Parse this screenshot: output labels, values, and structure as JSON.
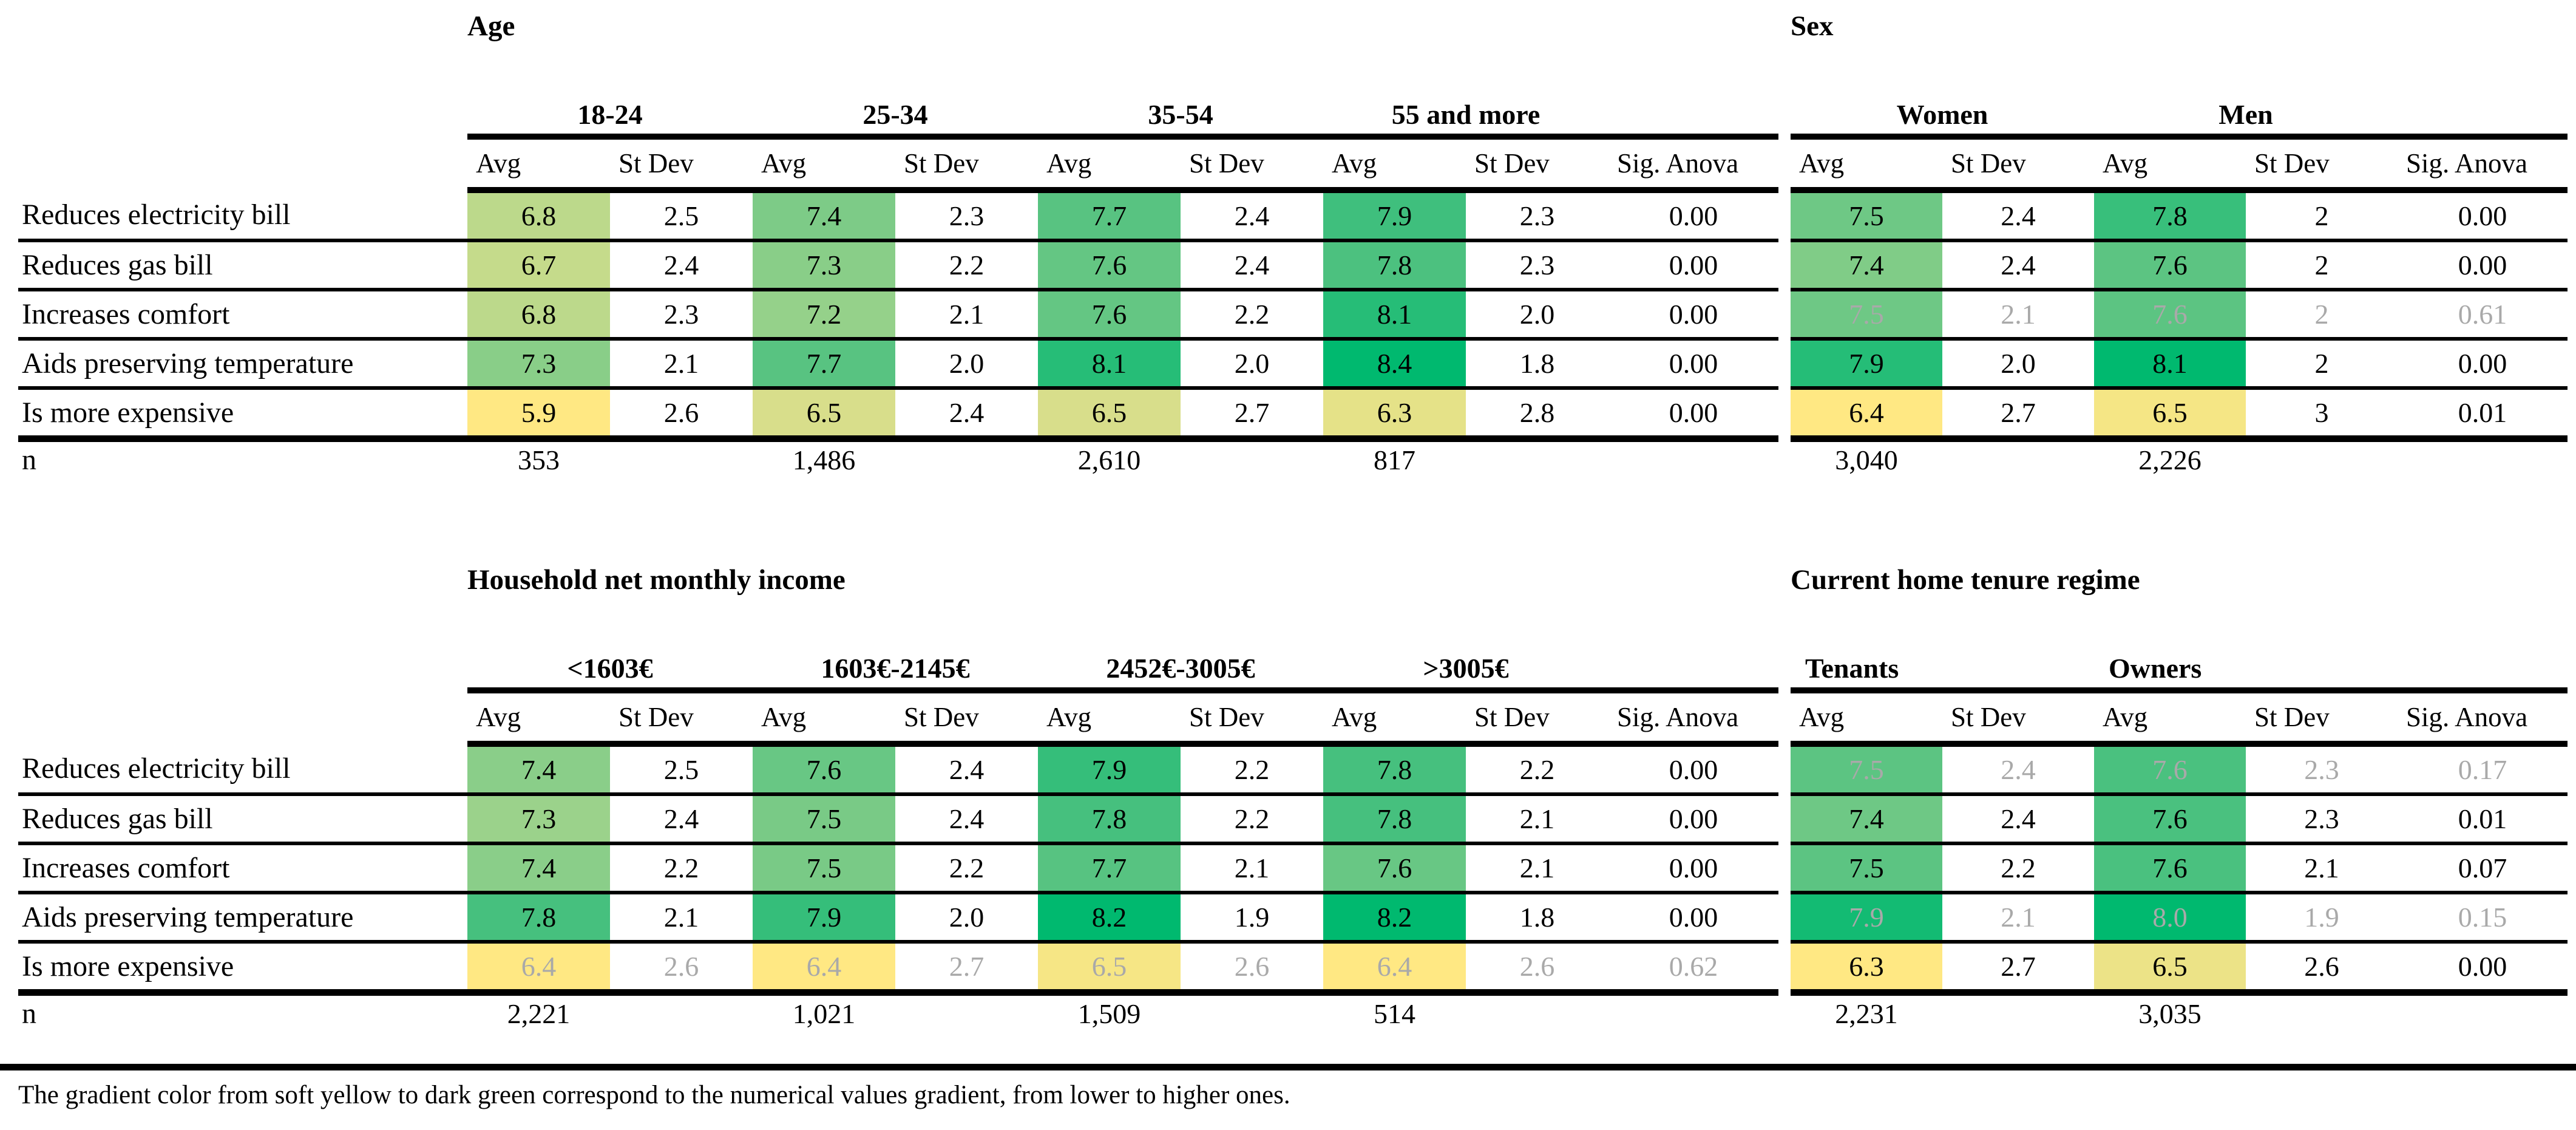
{
  "note": "The gradient color from soft yellow to dark green correspond to the numerical values gradient, from lower to higher ones.",
  "colors": {
    "gray_text": "#A9A9A9",
    "line": "#000000",
    "gradient_soft_yellow": "#FFE883",
    "gradient_dark_green": "#00B96F"
  },
  "gradient": {
    "stops": [
      [
        0,
        "#FFE883"
      ],
      [
        0.25,
        "#D6DE8B"
      ],
      [
        0.5,
        "#9BD28B"
      ],
      [
        0.75,
        "#4FC180"
      ],
      [
        1,
        "#00B96F"
      ]
    ]
  },
  "sub_headers": [
    "Avg",
    "St Dev"
  ],
  "sig_header": "Sig. Anova",
  "n_label": "n",
  "row_labels": [
    "Reduces electricity bill",
    "Reduces gas bill",
    "Increases comfort",
    "Aids preserving temperature",
    "Is more expensive"
  ],
  "tables": [
    {
      "id": "age",
      "title": "Age",
      "show_row_labels": true,
      "groups": [
        "18-24",
        "25-34",
        "35-54",
        "55 and more"
      ],
      "rows": [
        {
          "label": "Reduces electricity bill",
          "cells": [
            [
              "6.8",
              "2.5"
            ],
            [
              "7.4",
              "2.3"
            ],
            [
              "7.7",
              "2.4"
            ],
            [
              "7.9",
              "2.3"
            ]
          ],
          "sig": "0.00",
          "gray": false
        },
        {
          "label": "Reduces gas bill",
          "cells": [
            [
              "6.7",
              "2.4"
            ],
            [
              "7.3",
              "2.2"
            ],
            [
              "7.6",
              "2.4"
            ],
            [
              "7.8",
              "2.3"
            ]
          ],
          "sig": "0.00",
          "gray": false
        },
        {
          "label": "Increases comfort",
          "cells": [
            [
              "6.8",
              "2.3"
            ],
            [
              "7.2",
              "2.1"
            ],
            [
              "7.6",
              "2.2"
            ],
            [
              "8.1",
              "2.0"
            ]
          ],
          "sig": "0.00",
          "gray": false
        },
        {
          "label": "Aids preserving temperature",
          "cells": [
            [
              "7.3",
              "2.1"
            ],
            [
              "7.7",
              "2.0"
            ],
            [
              "8.1",
              "2.0"
            ],
            [
              "8.4",
              "1.8"
            ]
          ],
          "sig": "0.00",
          "gray": false
        },
        {
          "label": "Is more expensive",
          "cells": [
            [
              "5.9",
              "2.6"
            ],
            [
              "6.5",
              "2.4"
            ],
            [
              "6.5",
              "2.7"
            ],
            [
              "6.3",
              "2.8"
            ]
          ],
          "sig": "0.00",
          "gray": false
        }
      ],
      "n_values": [
        "353",
        "1,486",
        "2,610",
        "817"
      ]
    },
    {
      "id": "sex",
      "title": "Sex",
      "show_row_labels": false,
      "groups": [
        "Women",
        "Men"
      ],
      "rows": [
        {
          "label": "Reduces electricity bill",
          "cells": [
            [
              "7.5",
              "2.4"
            ],
            [
              "7.8",
              "2"
            ]
          ],
          "sig": "0.00",
          "gray": false
        },
        {
          "label": "Reduces gas bill",
          "cells": [
            [
              "7.4",
              "2.4"
            ],
            [
              "7.6",
              "2"
            ]
          ],
          "sig": "0.00",
          "gray": false
        },
        {
          "label": "Increases comfort",
          "cells": [
            [
              "7.5",
              "2.1"
            ],
            [
              "7.6",
              "2"
            ]
          ],
          "sig": "0.61",
          "gray": true
        },
        {
          "label": "Aids preserving temperature",
          "cells": [
            [
              "7.9",
              "2.0"
            ],
            [
              "8.1",
              "2"
            ]
          ],
          "sig": "0.00",
          "gray": false
        },
        {
          "label": "Is more expensive",
          "cells": [
            [
              "6.4",
              "2.7"
            ],
            [
              "6.5",
              "3"
            ]
          ],
          "sig": "0.01",
          "gray": false
        }
      ],
      "n_values": [
        "3,040",
        "2,226"
      ]
    },
    {
      "id": "income",
      "title": "Household net monthly income",
      "show_row_labels": true,
      "groups": [
        "<1603€",
        "1603€-2145€",
        "2452€-3005€",
        ">3005€"
      ],
      "rows": [
        {
          "label": "Reduces electricity bill",
          "cells": [
            [
              "7.4",
              "2.5"
            ],
            [
              "7.6",
              "2.4"
            ],
            [
              "7.9",
              "2.2"
            ],
            [
              "7.8",
              "2.2"
            ]
          ],
          "sig": "0.00",
          "gray": false
        },
        {
          "label": "Reduces gas bill",
          "cells": [
            [
              "7.3",
              "2.4"
            ],
            [
              "7.5",
              "2.4"
            ],
            [
              "7.8",
              "2.2"
            ],
            [
              "7.8",
              "2.1"
            ]
          ],
          "sig": "0.00",
          "gray": false
        },
        {
          "label": "Increases comfort",
          "cells": [
            [
              "7.4",
              "2.2"
            ],
            [
              "7.5",
              "2.2"
            ],
            [
              "7.7",
              "2.1"
            ],
            [
              "7.6",
              "2.1"
            ]
          ],
          "sig": "0.00",
          "gray": false
        },
        {
          "label": "Aids preserving temperature",
          "cells": [
            [
              "7.8",
              "2.1"
            ],
            [
              "7.9",
              "2.0"
            ],
            [
              "8.2",
              "1.9"
            ],
            [
              "8.2",
              "1.8"
            ]
          ],
          "sig": "0.00",
          "gray": false
        },
        {
          "label": "Is more expensive",
          "cells": [
            [
              "6.4",
              "2.6"
            ],
            [
              "6.4",
              "2.7"
            ],
            [
              "6.5",
              "2.6"
            ],
            [
              "6.4",
              "2.6"
            ]
          ],
          "sig": "0.62",
          "gray": true
        }
      ],
      "n_values": [
        "2,221",
        "1,021",
        "1,509",
        "514"
      ]
    },
    {
      "id": "tenure",
      "title": "Current home tenure regime",
      "show_row_labels": false,
      "groups": [
        "Tenants",
        "Owners"
      ],
      "rows": [
        {
          "label": "Reduces electricity bill",
          "cells": [
            [
              "7.5",
              "2.4"
            ],
            [
              "7.6",
              "2.3"
            ]
          ],
          "sig": "0.17",
          "gray": true
        },
        {
          "label": "Reduces gas bill",
          "cells": [
            [
              "7.4",
              "2.4"
            ],
            [
              "7.6",
              "2.3"
            ]
          ],
          "sig": "0.01",
          "gray": false
        },
        {
          "label": "Increases comfort",
          "cells": [
            [
              "7.5",
              "2.2"
            ],
            [
              "7.6",
              "2.1"
            ]
          ],
          "sig": "0.07",
          "gray": false
        },
        {
          "label": "Aids preserving temperature",
          "cells": [
            [
              "7.9",
              "2.1"
            ],
            [
              "8.0",
              "1.9"
            ]
          ],
          "sig": "0.15",
          "gray": true
        },
        {
          "label": "Is more expensive",
          "cells": [
            [
              "6.3",
              "2.7"
            ],
            [
              "6.5",
              "2.6"
            ]
          ],
          "sig": "0.00",
          "gray": false
        }
      ],
      "n_values": [
        "2,231",
        "3,035"
      ]
    }
  ]
}
